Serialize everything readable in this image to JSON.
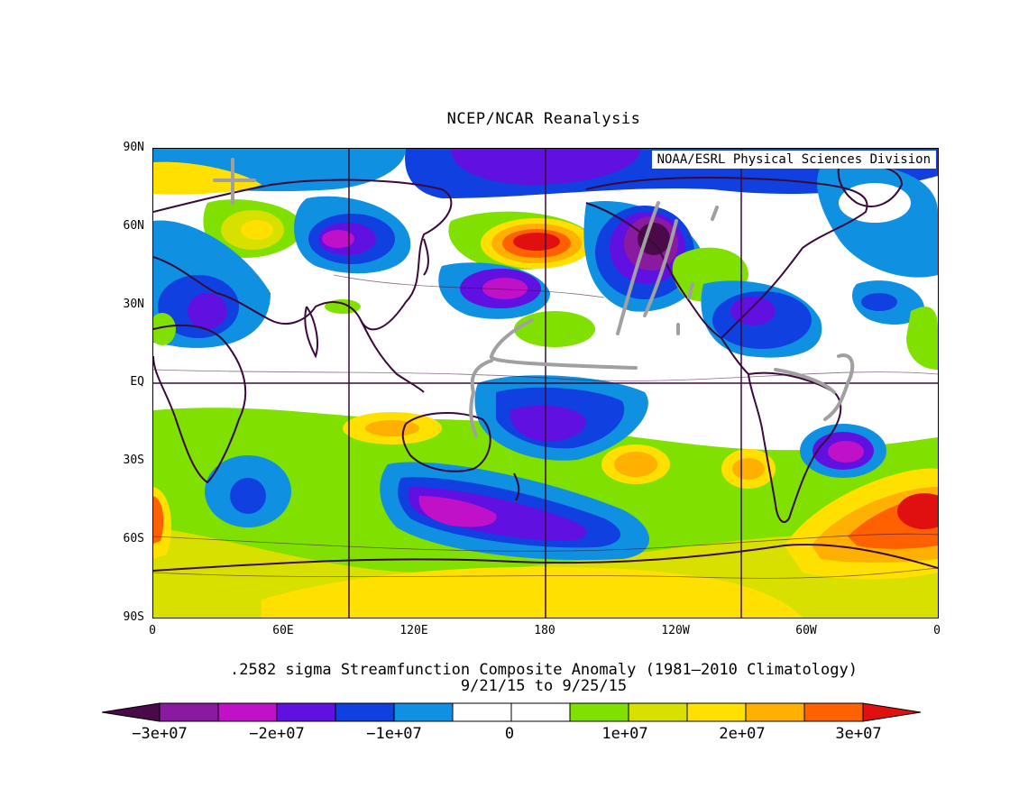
{
  "title": "NCEP/NCAR Reanalysis",
  "credit": "NOAA/ESRL Physical Sciences Division",
  "caption_line1": ".2582 sigma Streamfunction  Composite Anomaly (1981–2010 Climatology)",
  "caption_line2": "9/21/15  to 9/25/15",
  "y_ticks": [
    "90N",
    "60N",
    "30N",
    "EQ",
    "30S",
    "60S",
    "90S"
  ],
  "x_ticks": [
    "0",
    "60E",
    "120E",
    "180",
    "120W",
    "60W",
    "0"
  ],
  "colorbar": {
    "labels": [
      "−3e+07",
      "−2e+07",
      "−1e+07",
      "0",
      "1e+07",
      "2e+07",
      "3e+07"
    ],
    "colors": [
      "#4a0a4a",
      "#8a1aa0",
      "#c010c8",
      "#6010e0",
      "#1040e0",
      "#1090e0",
      "#ffffff",
      "#ffffff",
      "#80e000",
      "#d8e000",
      "#ffe000",
      "#ffb000",
      "#ff6000",
      "#e01010"
    ]
  },
  "colors": {
    "land_outline": "#3a0a3a",
    "annotation_gray": "#a0a0a0"
  }
}
